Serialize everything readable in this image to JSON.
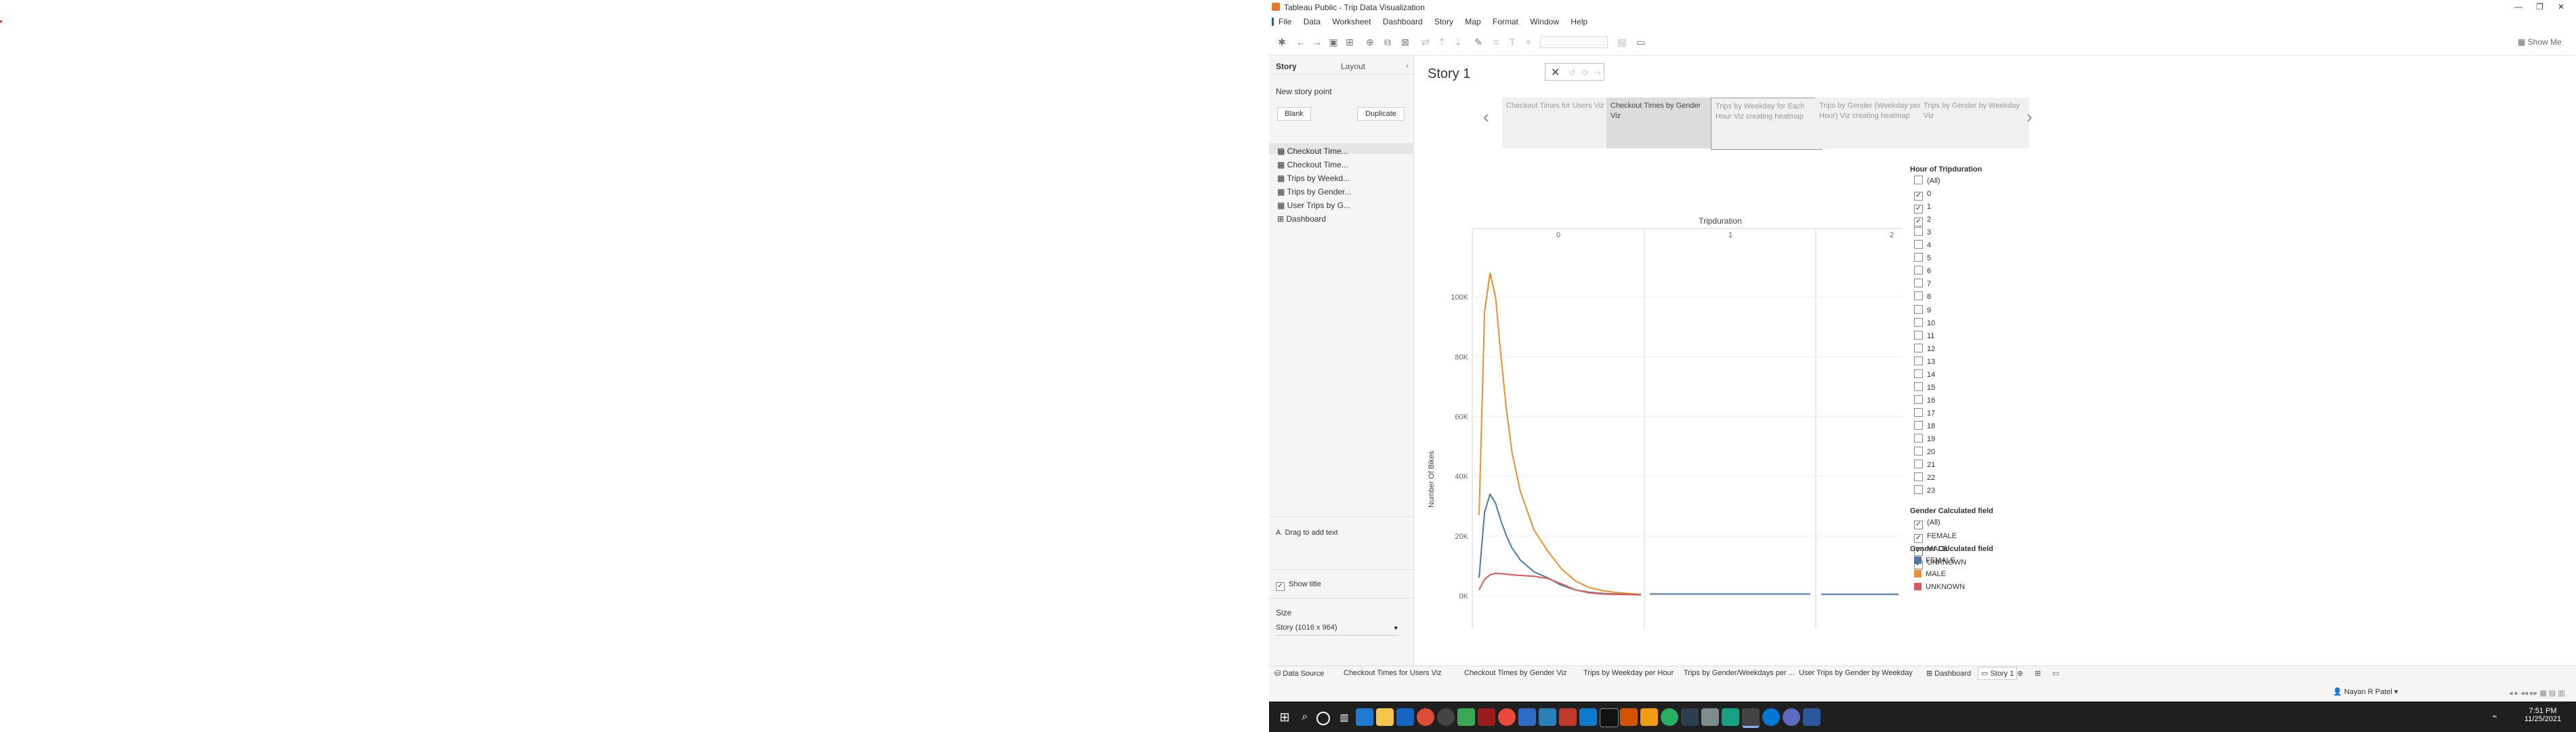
{
  "window": {
    "title": "Tableau Public - Trip Data Visualization",
    "controls": [
      "—",
      "❐",
      "✕"
    ]
  },
  "menu": [
    "File",
    "Data",
    "Worksheet",
    "Dashboard",
    "Story",
    "Map",
    "Format",
    "Window",
    "Help"
  ],
  "show_me": "Show Me",
  "left_panel": {
    "tabs": [
      "Story",
      "Layout"
    ],
    "new_story_point": "New story point",
    "blank_button": "Blank",
    "duplicate_button": "Duplicate",
    "sheets": [
      "Checkout Time...",
      "Checkout Time...",
      "Trips by Weekd...",
      "Trips by Gender...",
      "User Trips by G...",
      "Dashboard"
    ],
    "drag_text": "Drag to add text",
    "show_title": "Show title",
    "size_label": "Size",
    "size_value": "Story (1016 x 964)"
  },
  "story": {
    "title": "Story 1",
    "points": [
      "Checkout Times for Users Viz",
      "Checkout Times by Gender Viz",
      "Trips by Weekday for Each Hour Viz creating heatmap",
      "Trips by Gender (Weekday per Hour) Viz creating heatmap",
      "Trips by Gender by Weekday Viz"
    ]
  },
  "filters": {
    "hour_title": "Hour of Tripduration",
    "hours": [
      "(All)",
      "0",
      "1",
      "2",
      "3",
      "4",
      "5",
      "6",
      "7",
      "8",
      "9",
      "10",
      "11",
      "12",
      "13",
      "14",
      "15",
      "16",
      "17",
      "18",
      "19",
      "20",
      "21",
      "22",
      "23"
    ],
    "hours_checked": [
      false,
      true,
      true,
      true,
      false,
      false,
      false,
      false,
      false,
      false,
      false,
      false,
      false,
      false,
      false,
      false,
      false,
      false,
      false,
      false,
      false,
      false,
      false,
      false,
      false
    ],
    "gender_title": "Gender Calculated field",
    "genders": [
      "(All)",
      "FEMALE",
      "MALE",
      "UNKNOWN"
    ],
    "legend_title": "Gender Calculated field",
    "legend": [
      {
        "label": "FEMALE",
        "color": "#4e79a7"
      },
      {
        "label": "MALE",
        "color": "#f28e2b"
      },
      {
        "label": "UNKNOWN",
        "color": "#e15759"
      }
    ]
  },
  "chart_data": {
    "type": "line",
    "title": "Tripduration",
    "xlabel": "",
    "ylabel": "Number Of Bikes",
    "panels": [
      "0",
      "1",
      "2"
    ],
    "yticks": [
      "0K",
      "20K",
      "40K",
      "60K",
      "80K",
      "100K"
    ],
    "ylim": [
      0,
      115000
    ],
    "x": [
      0,
      2,
      4,
      6,
      8,
      10,
      12,
      15,
      20,
      25,
      30,
      35,
      40,
      45,
      50,
      55,
      59
    ],
    "series": [
      {
        "name": "MALE",
        "color": "#f28e2b",
        "values": [
          27000,
          95000,
          108000,
          100000,
          80000,
          62000,
          48000,
          35000,
          22000,
          15000,
          9000,
          5000,
          2800,
          1700,
          1100,
          700,
          500
        ]
      },
      {
        "name": "FEMALE",
        "color": "#4e79a7",
        "values": [
          6000,
          28000,
          34000,
          31000,
          25000,
          20000,
          16000,
          12000,
          8000,
          6000,
          3500,
          2000,
          1200,
          800,
          600,
          450,
          350
        ]
      },
      {
        "name": "UNKNOWN",
        "color": "#e15759",
        "values": [
          2000,
          5500,
          7000,
          7500,
          7400,
          7200,
          7000,
          6800,
          6500,
          5800,
          4000,
          2000,
          1000,
          600,
          450,
          380,
          300
        ]
      }
    ],
    "panel2_level": 600,
    "panel3_level": 500,
    "grid": true
  },
  "tabs": {
    "items": [
      "Data Source",
      "Checkout Times for Users Viz",
      "Checkout Times by Gender Viz",
      "Trips by Weekday per Hour",
      "Trips by Gender/Weekdays per ...",
      "User Trips by Gender by Weekday",
      "Dashboard",
      "Story 1"
    ],
    "user": "Nayan R Patel"
  },
  "clock": {
    "time": "7:51 PM",
    "date": "11/25/2021"
  }
}
